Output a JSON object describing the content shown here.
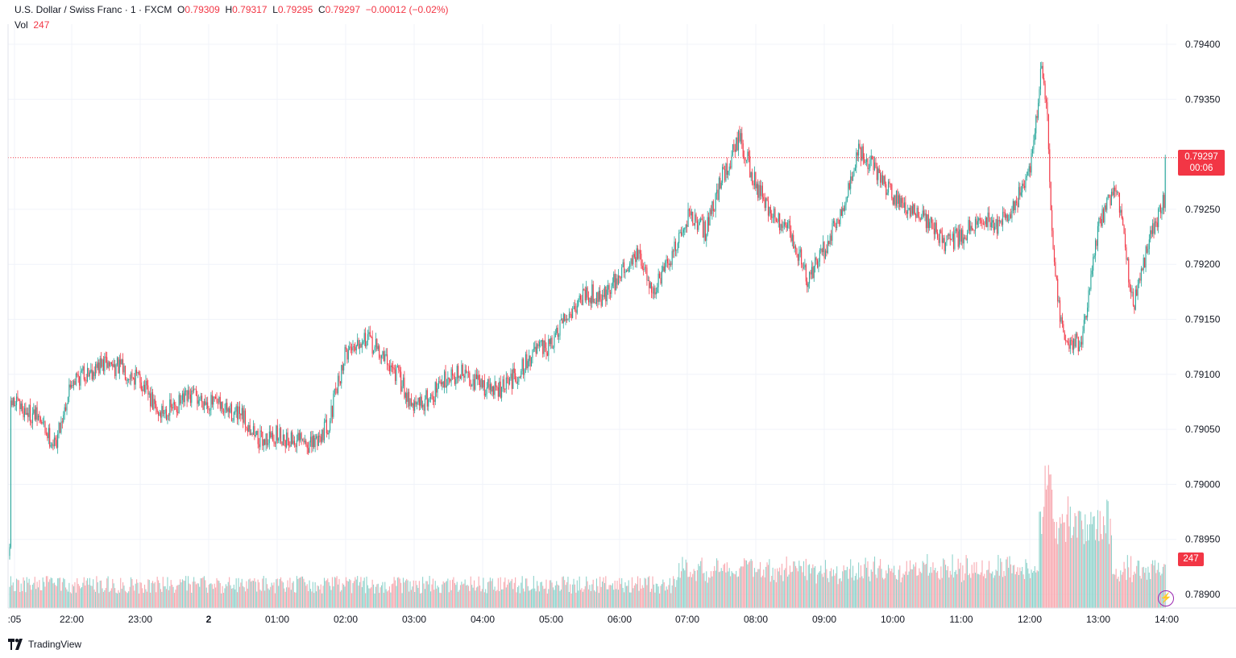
{
  "legend": {
    "symbol": "U.S. Dollar / Swiss Franc · 1 · FXCM",
    "o_label": "O",
    "o": "0.79309",
    "h_label": "H",
    "h": "0.79317",
    "l_label": "L",
    "l": "0.79295",
    "c_label": "C",
    "c": "0.79297",
    "change": "−0.00012 (−0.02%)",
    "vol_label": "Vol",
    "vol": "247"
  },
  "last_price": {
    "price": "0.79297",
    "countdown": "00:06"
  },
  "volume_tag": "247",
  "brand": "TradingView",
  "icons": {
    "brand_logo": "tradingview-logo-icon",
    "bolt": "lightning-icon"
  },
  "colors": {
    "up": "#26a69a",
    "down": "#f23645",
    "grid": "#f0f3fa",
    "text": "#131722",
    "last_line": "#f23645"
  },
  "chart_data": {
    "type": "candlestick",
    "interval": "1 minute",
    "y_ticks": [
      "0.79400",
      "0.79350",
      "0.79250",
      "0.79200",
      "0.79150",
      "0.79100",
      "0.79050",
      "0.79000",
      "0.78950",
      "0.78900"
    ],
    "y_range": [
      0.7889,
      0.7942
    ],
    "x_ticks": [
      ":05",
      "22:00",
      "23:00",
      "2",
      "01:00",
      "02:00",
      "03:00",
      "04:00",
      "05:00",
      "06:00",
      "07:00",
      "08:00",
      "09:00",
      "10:00",
      "11:00",
      "12:00",
      "13:00",
      "14:00"
    ],
    "last_close": 0.79297,
    "price_path": [
      [
        ":05",
        0.78935
      ],
      [
        ":05",
        0.79075
      ],
      [
        ":30",
        0.7906
      ],
      [
        ":45",
        0.79035
      ],
      [
        "22:00",
        0.79095
      ],
      [
        "22:30",
        0.7911
      ],
      [
        "22:45",
        0.79105
      ],
      [
        "23:00",
        0.79095
      ],
      [
        "23:15",
        0.79065
      ],
      [
        "23:30",
        0.7907
      ],
      [
        "23:45",
        0.7908
      ],
      [
        "00:00",
        0.79075
      ],
      [
        "00:30",
        0.7906
      ],
      [
        "00:45",
        0.7904
      ],
      [
        "01:00",
        0.79045
      ],
      [
        "01:30",
        0.79035
      ],
      [
        "01:45",
        0.79055
      ],
      [
        "02:00",
        0.7912
      ],
      [
        "02:15",
        0.79135
      ],
      [
        "02:30",
        0.7912
      ],
      [
        "02:45",
        0.791
      ],
      [
        "03:00",
        0.7907
      ],
      [
        "03:15",
        0.7908
      ],
      [
        "03:30",
        0.791
      ],
      [
        "03:45",
        0.791
      ],
      [
        "04:00",
        0.7909
      ],
      [
        "04:15",
        0.79085
      ],
      [
        "04:30",
        0.791
      ],
      [
        "04:45",
        0.7912
      ],
      [
        "05:00",
        0.79125
      ],
      [
        "05:15",
        0.79155
      ],
      [
        "05:30",
        0.79175
      ],
      [
        "05:45",
        0.7917
      ],
      [
        "06:00",
        0.7919
      ],
      [
        "06:15",
        0.7921
      ],
      [
        "06:30",
        0.79175
      ],
      [
        "06:45",
        0.79205
      ],
      [
        "07:00",
        0.79245
      ],
      [
        "07:15",
        0.7923
      ],
      [
        "07:30",
        0.7928
      ],
      [
        "07:45",
        0.79315
      ],
      [
        "08:00",
        0.7927
      ],
      [
        "08:15",
        0.79245
      ],
      [
        "08:30",
        0.7923
      ],
      [
        "08:45",
        0.79185
      ],
      [
        "09:00",
        0.79215
      ],
      [
        "09:15",
        0.7925
      ],
      [
        "09:30",
        0.79305
      ],
      [
        "09:45",
        0.79285
      ],
      [
        "10:00",
        0.7926
      ],
      [
        "10:15",
        0.7925
      ],
      [
        "10:30",
        0.7924
      ],
      [
        "10:45",
        0.7922
      ],
      [
        "11:00",
        0.79225
      ],
      [
        "11:15",
        0.79245
      ],
      [
        "11:30",
        0.79235
      ],
      [
        "11:45",
        0.7925
      ],
      [
        "12:00",
        0.7929
      ],
      [
        "12:05",
        0.79335
      ],
      [
        "12:10",
        0.7938
      ],
      [
        "12:15",
        0.7933
      ],
      [
        "12:20",
        0.792
      ],
      [
        "12:30",
        0.79125
      ],
      [
        "12:45",
        0.7913
      ],
      [
        "13:00",
        0.79235
      ],
      [
        "13:15",
        0.79275
      ],
      [
        "13:30",
        0.7916
      ],
      [
        "13:45",
        0.79225
      ],
      [
        "14:00",
        0.79265
      ],
      [
        "14:05",
        0.79345
      ],
      [
        "14:10",
        0.79297
      ]
    ]
  }
}
